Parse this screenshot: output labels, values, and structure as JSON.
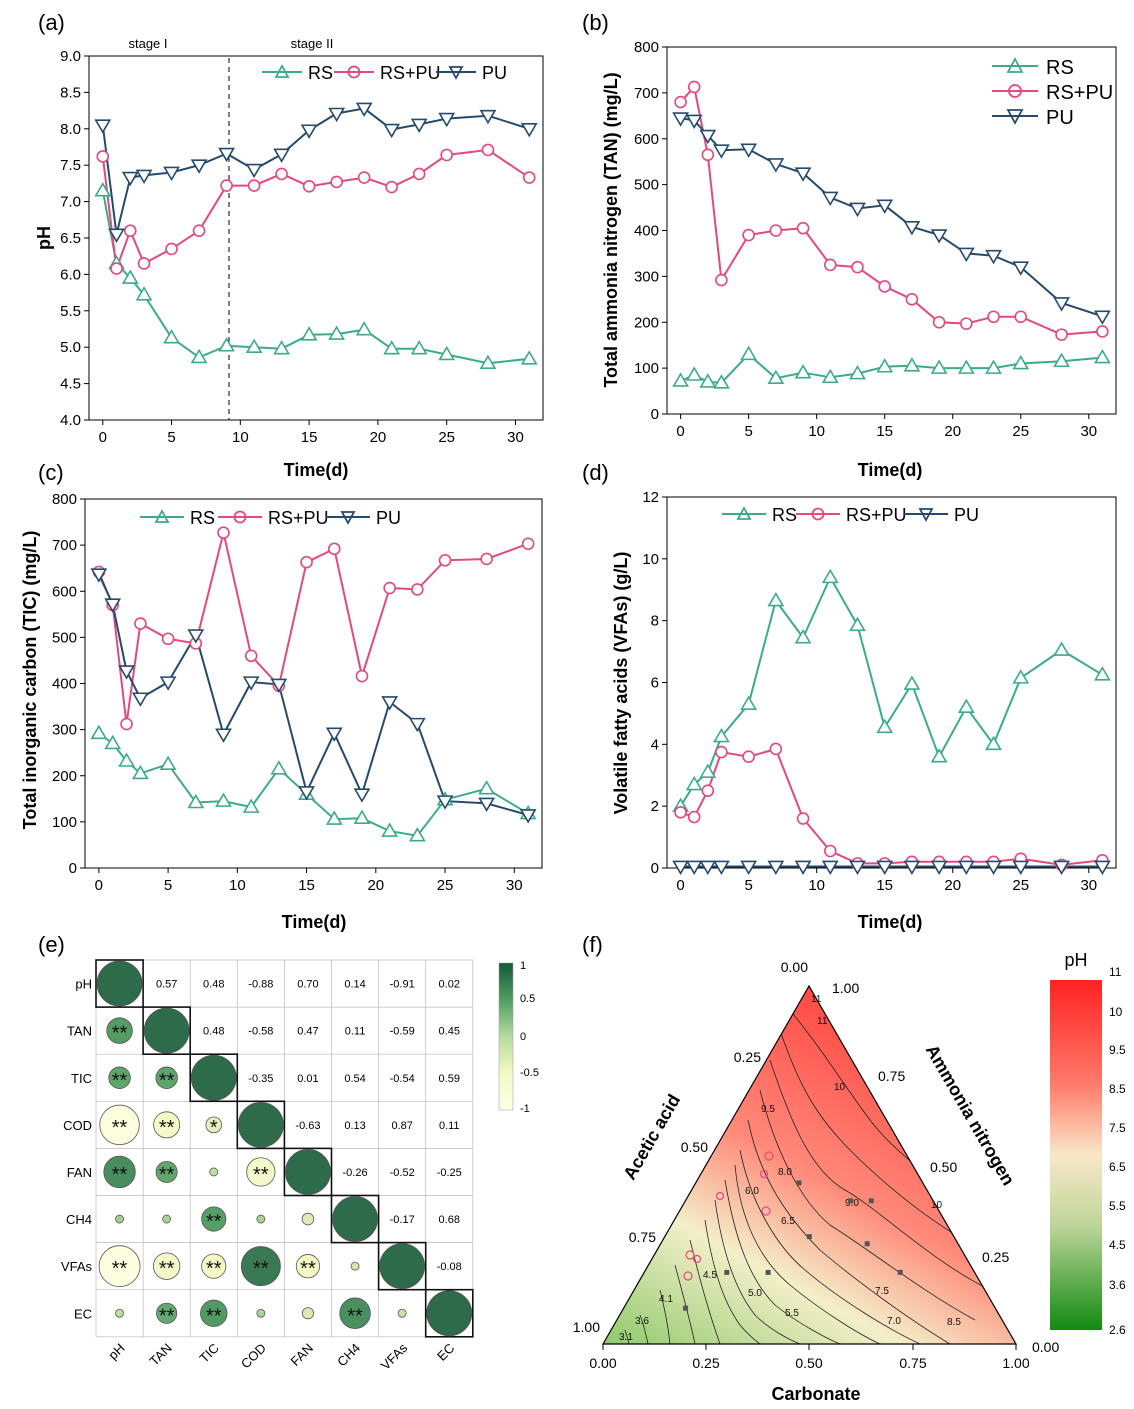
{
  "panels": {
    "a": {
      "letter": "(a)",
      "xlabel": "Time(d)",
      "ylabel": "pH",
      "xlim": [
        -1,
        32
      ],
      "ylim": [
        4.0,
        9.0
      ],
      "xticks": [
        0,
        5,
        10,
        15,
        20,
        25,
        30
      ],
      "yticks": [
        "4.0",
        "4.5",
        "5.0",
        "5.5",
        "6.0",
        "6.5",
        "7.0",
        "7.5",
        "8.0",
        "8.5",
        "9.0"
      ],
      "stage_labels": [
        "stage I",
        "stage II"
      ],
      "stage_divider_x": 9,
      "legend": [
        "RS",
        "RS+PU",
        "PU"
      ]
    },
    "b": {
      "letter": "(b)",
      "xlabel": "Time(d)",
      "ylabel": "Total ammonia nitrogen (TAN) (mg/L)",
      "xlim": [
        -1,
        32
      ],
      "ylim": [
        0,
        800
      ],
      "xticks": [
        0,
        5,
        10,
        15,
        20,
        25,
        30
      ],
      "yticks": [
        "0",
        "100",
        "200",
        "300",
        "400",
        "500",
        "600",
        "700",
        "800"
      ],
      "legend": [
        "RS",
        "RS+PU",
        "PU"
      ]
    },
    "c": {
      "letter": "(c)",
      "xlabel": "Time(d)",
      "ylabel": "Total inorganic carbon (TIC) (mg/L)",
      "xlim": [
        -1,
        32
      ],
      "ylim": [
        0,
        800
      ],
      "xticks": [
        0,
        5,
        10,
        15,
        20,
        25,
        30
      ],
      "yticks": [
        "0",
        "100",
        "200",
        "300",
        "400",
        "500",
        "600",
        "700",
        "800"
      ],
      "legend": [
        "RS",
        "RS+PU",
        "PU"
      ]
    },
    "d": {
      "letter": "(d)",
      "xlabel": "Time(d)",
      "ylabel": "Volatile fatty acids (VFAs) (g/L)",
      "xlim": [
        -1,
        32
      ],
      "ylim": [
        0,
        12
      ],
      "xticks": [
        0,
        5,
        10,
        15,
        20,
        25,
        30
      ],
      "yticks": [
        "0",
        "2",
        "4",
        "6",
        "8",
        "10",
        "12"
      ],
      "legend": [
        "RS",
        "RS+PU",
        "PU"
      ]
    },
    "e": {
      "letter": "(e)",
      "colorbar_ticks": [
        "1",
        "0.5",
        "0",
        "-0.5",
        "-1"
      ]
    },
    "f": {
      "letter": "(f)",
      "left_axis_label": "Acetic acid",
      "right_axis_label": "Ammonia nitrogen",
      "bottom_axis_label": "Carbonate",
      "bottom_ticks": [
        "0.00",
        "0.25",
        "0.50",
        "0.75",
        "1.00"
      ],
      "left_ticks": [
        "0.00",
        "0.25",
        "0.50",
        "0.75",
        "1.00"
      ],
      "right_ticks": [
        "1.00",
        "0.75",
        "0.50",
        "0.25",
        "0.00"
      ],
      "colorbar_title": "pH",
      "colorbar_ticks": [
        "11",
        "10",
        "9.5",
        "8.5",
        "7.5",
        "6.5",
        "5.5",
        "4.5",
        "3.6",
        "2.6"
      ],
      "contour_labels": [
        "11",
        "10",
        "9.5",
        "9.0",
        "8.5",
        "8.0",
        "7.5",
        "7.0",
        "6.5",
        "6.0",
        "5.5",
        "5.0",
        "4.5",
        "4.1",
        "3.6",
        "3.1"
      ]
    }
  },
  "colors": {
    "RS": "#3aab8c",
    "RS+PU": "#e5487a",
    "PU": "#254a6e",
    "corr_pos": "#2e6b4a",
    "corr_neg": "#ffffcc",
    "tern_high": "#ff2a2a",
    "tern_mid": "#f4efc9",
    "tern_low": "#1e8c1e"
  },
  "chart_data": [
    {
      "panel": "a",
      "type": "line",
      "title": "",
      "xlabel": "Time(d)",
      "ylabel": "pH",
      "ylim": [
        4.0,
        9.0
      ],
      "x": [
        0,
        1,
        2,
        3,
        5,
        7,
        9,
        11,
        13,
        15,
        17,
        19,
        21,
        23,
        25,
        28,
        31
      ],
      "series": [
        {
          "name": "RS",
          "values": [
            7.15,
            6.15,
            5.95,
            5.72,
            5.13,
            4.86,
            5.02,
            5.0,
            4.98,
            5.17,
            5.18,
            5.24,
            4.98,
            4.98,
            4.9,
            4.78,
            4.84
          ]
        },
        {
          "name": "RS+PU",
          "values": [
            7.62,
            6.08,
            6.6,
            6.15,
            6.35,
            6.6,
            7.22,
            7.22,
            7.38,
            7.21,
            7.27,
            7.33,
            7.2,
            7.38,
            7.64,
            7.71,
            7.33
          ]
        },
        {
          "name": "PU",
          "values": [
            8.05,
            6.55,
            7.33,
            7.36,
            7.4,
            7.5,
            7.66,
            7.44,
            7.65,
            7.98,
            8.21,
            8.28,
            7.99,
            8.06,
            8.14,
            8.18,
            8.0
          ]
        }
      ]
    },
    {
      "panel": "b",
      "type": "line",
      "title": "",
      "xlabel": "Time(d)",
      "ylabel": "Total ammonia nitrogen (TAN) (mg/L)",
      "ylim": [
        0,
        800
      ],
      "x": [
        0,
        1,
        2,
        3,
        5,
        7,
        9,
        11,
        13,
        15,
        17,
        19,
        21,
        23,
        25,
        28,
        31
      ],
      "series": [
        {
          "name": "RS",
          "values": [
            72,
            85,
            70,
            68,
            130,
            78,
            90,
            80,
            88,
            103,
            105,
            100,
            100,
            100,
            110,
            115,
            123
          ]
        },
        {
          "name": "RS+PU",
          "values": [
            680,
            713,
            565,
            292,
            390,
            400,
            405,
            325,
            320,
            278,
            250,
            200,
            197,
            212,
            212,
            173,
            180
          ]
        },
        {
          "name": "PU",
          "values": [
            645,
            640,
            607,
            575,
            577,
            545,
            525,
            472,
            448,
            455,
            408,
            390,
            350,
            345,
            320,
            242,
            213
          ]
        }
      ]
    },
    {
      "panel": "c",
      "type": "line",
      "title": "",
      "xlabel": "Time(d)",
      "ylabel": "Total inorganic carbon (TIC) (mg/L)",
      "ylim": [
        0,
        800
      ],
      "x": [
        0,
        1,
        2,
        3,
        5,
        7,
        9,
        11,
        13,
        15,
        17,
        19,
        21,
        23,
        25,
        28,
        31
      ],
      "series": [
        {
          "name": "RS",
          "values": [
            292,
            270,
            232,
            205,
            225,
            142,
            145,
            132,
            215,
            160,
            106,
            108,
            80,
            70,
            148,
            172,
            118
          ]
        },
        {
          "name": "RS+PU",
          "values": [
            642,
            570,
            312,
            530,
            497,
            487,
            727,
            460,
            395,
            663,
            692,
            416,
            607,
            604,
            667,
            670,
            703
          ]
        },
        {
          "name": "PU",
          "values": [
            637,
            572,
            427,
            368,
            403,
            505,
            290,
            403,
            398,
            165,
            292,
            160,
            360,
            313,
            145,
            140,
            115
          ]
        }
      ]
    },
    {
      "panel": "d",
      "type": "line",
      "title": "",
      "xlabel": "Time(d)",
      "ylabel": "Volatile fatty acids (VFAs) (g/L)",
      "ylim": [
        0,
        12
      ],
      "x": [
        0,
        1,
        2,
        3,
        5,
        7,
        9,
        11,
        13,
        15,
        17,
        19,
        21,
        23,
        25,
        28,
        31
      ],
      "series": [
        {
          "name": "RS",
          "values": [
            2.0,
            2.7,
            3.1,
            4.25,
            5.3,
            8.65,
            7.45,
            9.4,
            7.85,
            4.55,
            5.95,
            3.6,
            5.2,
            4.0,
            6.15,
            7.05,
            6.25
          ]
        },
        {
          "name": "RS+PU",
          "values": [
            1.8,
            1.65,
            2.5,
            3.75,
            3.6,
            3.85,
            1.6,
            0.55,
            0.15,
            0.15,
            0.2,
            0.2,
            0.2,
            0.2,
            0.3,
            0.1,
            0.25
          ]
        },
        {
          "name": "PU",
          "values": [
            0.05,
            0.05,
            0.05,
            0.05,
            0.05,
            0.05,
            0.05,
            0.05,
            0.05,
            0.05,
            0.05,
            0.05,
            0.05,
            0.05,
            0.05,
            0.05,
            0.05
          ]
        }
      ]
    },
    {
      "panel": "e",
      "type": "heatmap",
      "title": "",
      "labels": [
        "pH",
        "TAN",
        "TIC",
        "COD",
        "FAN",
        "CH4",
        "VFAs",
        "EC"
      ],
      "upper": [
        [
          null,
          "0.57",
          "0.48",
          "-0.88",
          "0.70",
          "0.14",
          "-0.91",
          "0.02"
        ],
        [
          null,
          null,
          "0.48",
          "-0.58",
          "0.47",
          "0.11",
          "-0.59",
          "0.45"
        ],
        [
          null,
          null,
          null,
          "-0.35",
          "0.01",
          "0.54",
          "-0.54",
          "0.59"
        ],
        [
          null,
          null,
          null,
          null,
          "-0.63",
          "0.13",
          "0.87",
          "0.11"
        ],
        [
          null,
          null,
          null,
          null,
          null,
          "-0.26",
          "-0.52",
          "-0.25"
        ],
        [
          null,
          null,
          null,
          null,
          null,
          null,
          "-0.17",
          "0.68"
        ],
        [
          null,
          null,
          null,
          null,
          null,
          null,
          null,
          "-0.08"
        ]
      ],
      "lower_values": [
        [
          1.0
        ],
        [
          0.57,
          1.0
        ],
        [
          0.48,
          0.48,
          1.0
        ],
        [
          -0.88,
          -0.58,
          -0.35,
          1.0
        ],
        [
          0.7,
          0.47,
          0.01,
          -0.63,
          1.0
        ],
        [
          0.14,
          0.11,
          0.54,
          0.13,
          -0.26,
          1.0
        ],
        [
          -0.91,
          -0.59,
          -0.54,
          0.87,
          -0.52,
          -0.17,
          1.0
        ],
        [
          0.02,
          0.45,
          0.59,
          0.11,
          -0.25,
          0.68,
          -0.08,
          1.0
        ]
      ],
      "significance": [
        [
          ""
        ],
        [
          "**",
          ""
        ],
        [
          "**",
          "**",
          ""
        ],
        [
          "**",
          "**",
          "*",
          ""
        ],
        [
          "**",
          "**",
          "",
          "**",
          ""
        ],
        [
          "",
          "",
          "**",
          "",
          "",
          ""
        ],
        [
          "**",
          "**",
          "**",
          "**",
          "**",
          "",
          ""
        ],
        [
          "",
          "**",
          "**",
          "",
          "",
          "**",
          "",
          ""
        ]
      ]
    },
    {
      "panel": "f",
      "type": "ternary",
      "title": "",
      "axes": [
        "Carbonate",
        "Acetic acid",
        "Ammonia nitrogen"
      ],
      "value_range": [
        2.6,
        11
      ],
      "points": [
        {
          "carbonate": 0.62,
          "acetic": 0.18,
          "ammonia": 0.2
        },
        {
          "carbonate": 0.4,
          "acetic": 0.2,
          "ammonia": 0.4
        },
        {
          "carbonate": 0.5,
          "acetic": 0.22,
          "ammonia": 0.28
        },
        {
          "carbonate": 0.35,
          "acetic": 0.35,
          "ammonia": 0.3
        },
        {
          "carbonate": 0.2,
          "acetic": 0.6,
          "ammonia": 0.2
        },
        {
          "carbonate": 0.3,
          "acetic": 0.5,
          "ammonia": 0.2
        },
        {
          "carbonate": 0.15,
          "acetic": 0.75,
          "ammonia": 0.1
        },
        {
          "carbonate": 0.25,
          "acetic": 0.3,
          "ammonia": 0.45
        },
        {
          "carbonate": 0.45,
          "acetic": 0.15,
          "ammonia": 0.4
        }
      ]
    }
  ]
}
